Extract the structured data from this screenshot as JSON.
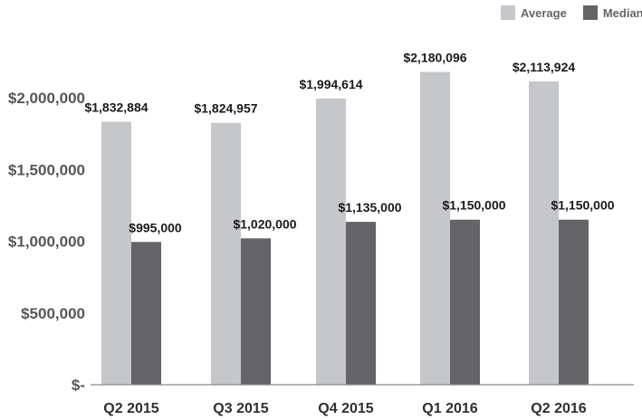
{
  "colors": {
    "average": "#c5c7ca",
    "median": "#646468",
    "axis": "#8a8a8a",
    "tick_text": "#575757",
    "category_text": "#2f2f2f",
    "label_text": "#1a1a1a"
  },
  "legend": [
    {
      "label": "Average",
      "color": "#c5c7ca"
    },
    {
      "label": "Median",
      "color": "#646468"
    }
  ],
  "chart_data": {
    "type": "bar",
    "title": "",
    "xlabel": "",
    "ylabel": "",
    "legend_position": "top-right",
    "grid": false,
    "categories": [
      "Q2 2015",
      "Q3 2015",
      "Q4 2015",
      "Q1 2016",
      "Q2 2016"
    ],
    "series": [
      {
        "name": "Average",
        "values": [
          1832884,
          1824957,
          1994614,
          2180096,
          2113924
        ],
        "labels": [
          "$1,832,884",
          "$1,824,957",
          "$1,994,614",
          "$2,180,096",
          "$2,113,924"
        ]
      },
      {
        "name": "Median",
        "values": [
          995000,
          1020000,
          1135000,
          1150000,
          1150000
        ],
        "labels": [
          "$995,000",
          "$1,020,000",
          "$1,135,000",
          "$1,150,000",
          "$1,150,000"
        ]
      }
    ],
    "ylim": [
      0,
      2000000
    ],
    "yticks": [
      0,
      500000,
      1000000,
      1500000,
      2000000
    ],
    "ytick_labels": [
      "$-",
      "$500,000",
      "$1,000,000",
      "$1,500,000",
      "$2,000,000"
    ]
  }
}
